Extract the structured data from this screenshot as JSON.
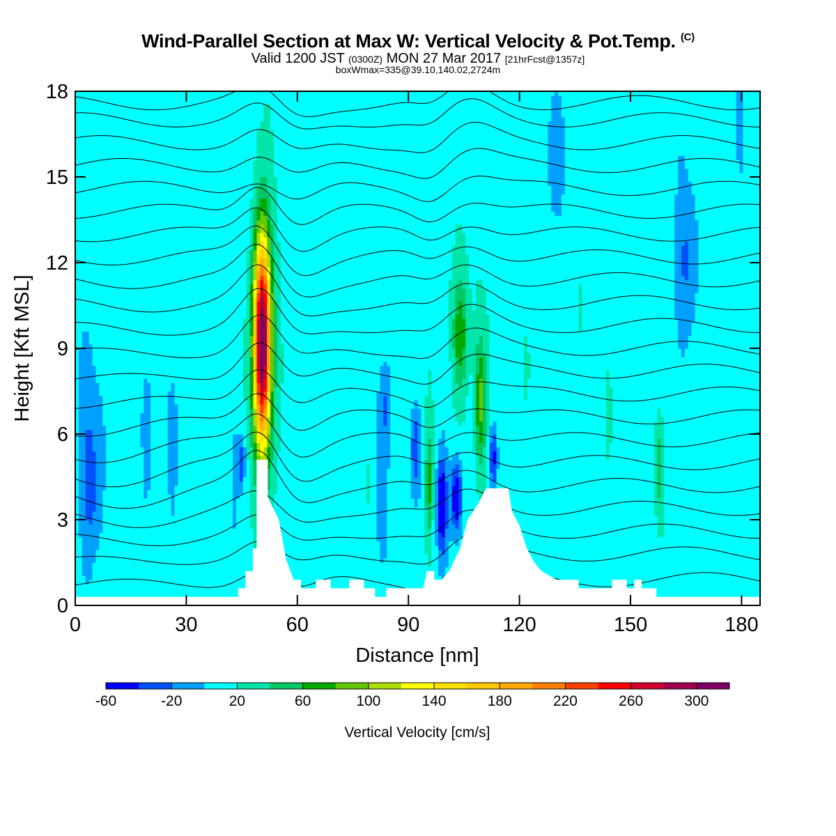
{
  "header": {
    "title": "Wind-Parallel Section at Max W: Vertical Velocity & Pot.Temp.",
    "title_mark": "(C)",
    "valid_prefix": "Valid 1200 JST",
    "valid_utc": "(0300Z)",
    "valid_date": "MON 27 Mar 2017",
    "valid_fcst": "[21hrFcst@1357z]",
    "box_info": "boxWmax=335@39.10,140.02,2724m"
  },
  "chart_data": {
    "type": "heatmap",
    "xlabel": "Distance [nm]",
    "ylabel": "Height [Kft MSL]",
    "xlim": [
      0,
      185
    ],
    "ylim": [
      0,
      18
    ],
    "xticks": [
      0,
      30,
      60,
      90,
      120,
      150,
      180
    ],
    "yticks": [
      0,
      3,
      6,
      9,
      12,
      15,
      18
    ],
    "colorbar": {
      "label": "Vertical Velocity [cm/s]",
      "min": -60,
      "max": 320,
      "step": 20,
      "tick_labels": [
        "-60",
        "-20",
        "20",
        "60",
        "100",
        "140",
        "180",
        "220",
        "260",
        "300"
      ],
      "colors": [
        "#0000ff",
        "#0050ff",
        "#00a0ff",
        "#00ffff",
        "#00e6aa",
        "#00c864",
        "#00aa00",
        "#64c800",
        "#aadc00",
        "#ffff00",
        "#ffe000",
        "#ffc800",
        "#ffaa00",
        "#ff8000",
        "#ff4000",
        "#ff0000",
        "#d2002d",
        "#a00050",
        "#7d0064"
      ]
    },
    "background_w": 20,
    "terrain_kft": [
      [
        0,
        0.3
      ],
      [
        44,
        0.3
      ],
      [
        44,
        0.6
      ],
      [
        46,
        0.6
      ],
      [
        46,
        1.2
      ],
      [
        48,
        1.2
      ],
      [
        48,
        2
      ],
      [
        49,
        2
      ],
      [
        49,
        5.1
      ],
      [
        52,
        5.1
      ],
      [
        52,
        3.8
      ],
      [
        55,
        3
      ],
      [
        57,
        1.6
      ],
      [
        59,
        0.9
      ],
      [
        61,
        0.9
      ],
      [
        61,
        0.6
      ],
      [
        65,
        0.6
      ],
      [
        65,
        0.9
      ],
      [
        69,
        0.9
      ],
      [
        69,
        0.6
      ],
      [
        74,
        0.6
      ],
      [
        74,
        0.9
      ],
      [
        78,
        0.9
      ],
      [
        78,
        0.6
      ],
      [
        81,
        0.6
      ],
      [
        81,
        0.3
      ],
      [
        84,
        0.3
      ],
      [
        84,
        0.6
      ],
      [
        94,
        0.6
      ],
      [
        95,
        1.2
      ],
      [
        97,
        1.2
      ],
      [
        97,
        0.9
      ],
      [
        99,
        0.9
      ],
      [
        101,
        1.2
      ],
      [
        104,
        2
      ],
      [
        106,
        3
      ],
      [
        109,
        3.6
      ],
      [
        111,
        4.1
      ],
      [
        117,
        4.1
      ],
      [
        118,
        3.3
      ],
      [
        120,
        2.8
      ],
      [
        122,
        2
      ],
      [
        124,
        1.5
      ],
      [
        126,
        1.2
      ],
      [
        130,
        0.9
      ],
      [
        136,
        0.9
      ],
      [
        136,
        0.6
      ],
      [
        145,
        0.6
      ],
      [
        145,
        0.9
      ],
      [
        149,
        0.9
      ],
      [
        149,
        0.6
      ],
      [
        151,
        0.6
      ],
      [
        151,
        0.9
      ],
      [
        153,
        0.9
      ],
      [
        153,
        0.6
      ],
      [
        157,
        0.6
      ],
      [
        157,
        0.3
      ],
      [
        185,
        0.3
      ]
    ],
    "updraft_cores": [
      {
        "x": 50.5,
        "y": 9.2,
        "peak": 335
      },
      {
        "x": 104,
        "y": 9.5,
        "peak": 80
      },
      {
        "x": 109.5,
        "y": 7.2,
        "peak": 90
      },
      {
        "x": 95.5,
        "y": 4.2,
        "peak": 75
      },
      {
        "x": 157.5,
        "y": 4.8,
        "peak": 60
      },
      {
        "x": 144,
        "y": 7,
        "peak": 35
      },
      {
        "x": 122,
        "y": 8.2,
        "peak": 38
      },
      {
        "x": 136.5,
        "y": 10.5,
        "peak": 30
      },
      {
        "x": 41,
        "y": 3.2,
        "peak": 30
      },
      {
        "x": 79,
        "y": 4,
        "peak": 28
      }
    ],
    "downdraft_cores": [
      {
        "x": 99,
        "y": 3.5,
        "peak": -55
      },
      {
        "x": 103,
        "y": 3.8,
        "peak": -60
      },
      {
        "x": 92,
        "y": 5.5,
        "peak": -30
      },
      {
        "x": 113,
        "y": 5.2,
        "peak": -45
      },
      {
        "x": 45,
        "y": 5,
        "peak": -30
      },
      {
        "x": 84,
        "y": 7,
        "peak": -10
      },
      {
        "x": 5,
        "y": 4,
        "peak": -10
      },
      {
        "x": 130,
        "y": 16,
        "peak": -10
      },
      {
        "x": 165,
        "y": 12,
        "peak": -10
      }
    ],
    "theta_contours": {
      "levels_kft": [
        0.9,
        1.8,
        2.6,
        3.4,
        4.2,
        5.0,
        5.8,
        6.6,
        7.4,
        8.2,
        9.0,
        9.8,
        10.6,
        11.4,
        12.2,
        13.0,
        13.8,
        14.6,
        15.4,
        16.2,
        17.0,
        17.6
      ]
    }
  }
}
